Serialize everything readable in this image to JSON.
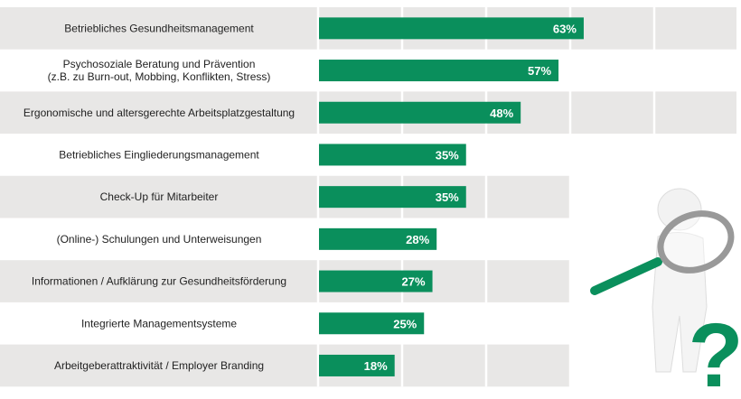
{
  "chart_data": {
    "type": "bar",
    "orientation": "horizontal",
    "categories": [
      [
        "Betriebliches Gesundheitsmanagement"
      ],
      [
        "Psychosoziale Beratung und Prävention",
        "(z.B. zu Burn-out, Mobbing, Konflikten, Stress)"
      ],
      [
        "Ergonomische und altersgerechte Arbeitsplatzgestaltung"
      ],
      [
        "Betriebliches Eingliederungsmanagement"
      ],
      [
        "Check-Up für Mitarbeiter"
      ],
      [
        "(Online-) Schulungen und Unterweisungen"
      ],
      [
        "Informationen / Aufklärung zur Gesundheitsförderung"
      ],
      [
        "Integrierte Managementsysteme"
      ],
      [
        "Arbeitgeberattraktivität / Employer Branding"
      ]
    ],
    "values": [
      63,
      57,
      48,
      35,
      35,
      28,
      27,
      25,
      18
    ],
    "value_labels": [
      "63%",
      "57%",
      "48%",
      "35%",
      "35%",
      "28%",
      "27%",
      "25%",
      "18%"
    ],
    "xlim": [
      0,
      100
    ],
    "grid": true,
    "bar_color": "#0a8f5c",
    "band_color": "#e8e7e6"
  },
  "illustration": {
    "icon": "person-with-magnifier-question-mark-icon",
    "accent": "#0a8f5c"
  }
}
